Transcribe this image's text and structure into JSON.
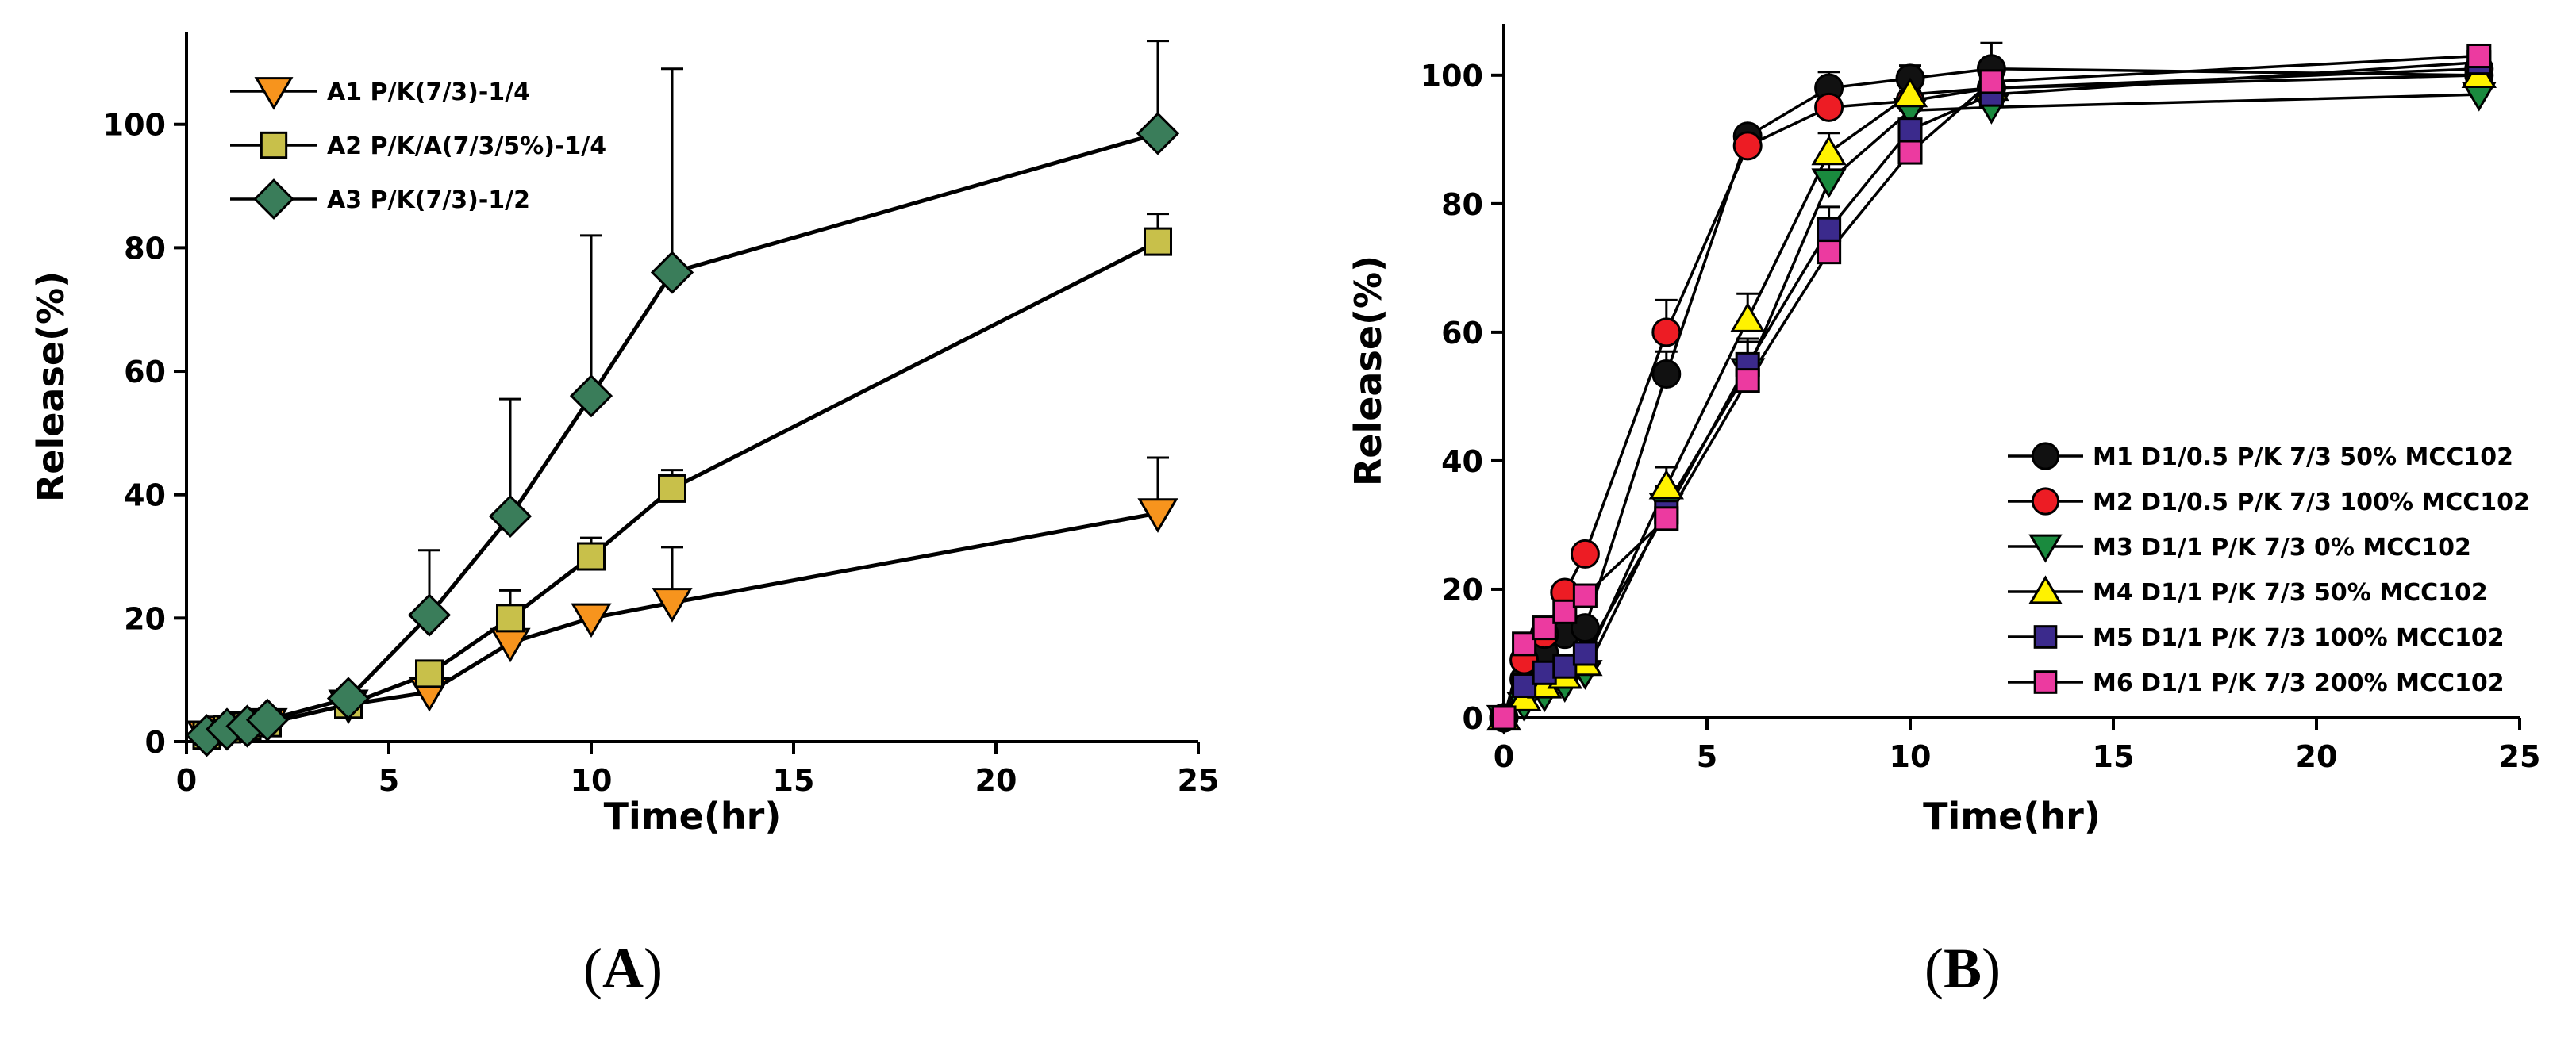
{
  "chart_data": [
    {
      "panel": "A",
      "type": "line",
      "title": "",
      "xlabel": "Time(hr)",
      "ylabel": "Release(%)",
      "xlim": [
        0,
        25
      ],
      "ylim": [
        0,
        115
      ],
      "xticks": [
        0,
        5,
        10,
        15,
        20,
        25
      ],
      "yticks": [
        0,
        20,
        40,
        60,
        80,
        100
      ],
      "grid": false,
      "legend_position": "top-left",
      "series": [
        {
          "name": "A1 P/K(7/3)-1/4",
          "marker": "triangle-down",
          "color": "#f7941d",
          "x": [
            0.5,
            1,
            1.5,
            2,
            4,
            6,
            8,
            10,
            12,
            24
          ],
          "y": [
            1,
            1.8,
            2.5,
            3,
            6,
            8,
            16,
            20,
            22.5,
            37
          ],
          "err": [
            0,
            0,
            0,
            0,
            0,
            0,
            0,
            0,
            9,
            9
          ]
        },
        {
          "name": "A2 P/K/A(7/3/5%)-1/4",
          "marker": "square",
          "color": "#c8c04a",
          "x": [
            0.5,
            1,
            1.5,
            2,
            4,
            6,
            8,
            10,
            12,
            24
          ],
          "y": [
            1,
            2,
            2.5,
            3,
            6,
            11,
            20,
            30,
            41,
            81
          ],
          "err": [
            0,
            0,
            0,
            0,
            0,
            0,
            4.5,
            3,
            3,
            4.5
          ]
        },
        {
          "name": "A3 P/K(7/3)-1/2",
          "marker": "diamond",
          "color": "#3a7d5a",
          "x": [
            0.5,
            1,
            1.5,
            2,
            4,
            6,
            8,
            10,
            12,
            24
          ],
          "y": [
            1,
            2,
            2.5,
            3.5,
            7,
            20.5,
            36.5,
            56,
            76,
            98.5
          ],
          "err": [
            0,
            0,
            0,
            0,
            0,
            10.5,
            19,
            26,
            33,
            15
          ]
        }
      ]
    },
    {
      "panel": "B",
      "type": "line",
      "title": "",
      "xlabel": "Time(hr)",
      "ylabel": "Release(%)",
      "xlim": [
        0,
        25
      ],
      "ylim": [
        0,
        108
      ],
      "xticks": [
        0,
        5,
        10,
        15,
        20,
        25
      ],
      "yticks": [
        0,
        20,
        40,
        60,
        80,
        100
      ],
      "grid": false,
      "legend_position": "bottom-right",
      "series": [
        {
          "name": "M1 D1/0.5 P/K 7/3  50% MCC102",
          "marker": "circle",
          "color": "#111111",
          "x": [
            0,
            0.5,
            1,
            1.5,
            2,
            4,
            6,
            8,
            10,
            12,
            24
          ],
          "y": [
            0,
            6,
            10,
            13,
            14,
            53.5,
            90.5,
            98,
            99.5,
            101,
            100
          ],
          "err": [
            0,
            0,
            0,
            0,
            0,
            3.5,
            0,
            2.5,
            2,
            4,
            0
          ]
        },
        {
          "name": "M2 D1/0.5 P/K 7/3  100% MCC102",
          "marker": "circle",
          "color": "#ed1c24",
          "x": [
            0,
            0.5,
            1,
            1.5,
            2,
            4,
            6,
            8,
            10,
            12,
            24
          ],
          "y": [
            0,
            9,
            13,
            19.5,
            25.5,
            60,
            89,
            95,
            96,
            98,
            101
          ],
          "err": [
            0,
            0,
            0,
            0,
            0,
            5,
            2.5,
            2.5,
            2,
            2,
            0
          ]
        },
        {
          "name": "M3 D1/1 P/K 7/3  0% MCC102",
          "marker": "triangle-down",
          "color": "#1a8a3e",
          "x": [
            0,
            0.5,
            1,
            1.5,
            2,
            4,
            6,
            8,
            10,
            12,
            24
          ],
          "y": [
            0,
            2,
            3.5,
            5,
            7,
            33,
            54,
            83.5,
            94.5,
            95,
            97
          ],
          "err": [
            0,
            0,
            0,
            0,
            0,
            3,
            2.5,
            3,
            3,
            3.5,
            2.5
          ]
        },
        {
          "name": "M4 D1/1 P/K 7/3  50% MCC102",
          "marker": "triangle-up",
          "color": "#fff200",
          "x": [
            0,
            0.5,
            1,
            1.5,
            2,
            4,
            6,
            8,
            10,
            12,
            24
          ],
          "y": [
            0,
            3,
            5,
            6.5,
            8.5,
            36,
            62,
            88,
            97,
            98,
            100
          ],
          "err": [
            0,
            0,
            0,
            0,
            0,
            3,
            4,
            3,
            2.5,
            2,
            2
          ]
        },
        {
          "name": "M5 D1/1 P/K 7/3  100% MCC102",
          "marker": "square",
          "color": "#3b2a8c",
          "x": [
            0,
            0.5,
            1,
            1.5,
            2,
            4,
            6,
            8,
            10,
            12,
            24
          ],
          "y": [
            0,
            5,
            7,
            8,
            10,
            32,
            55,
            76,
            91.5,
            97,
            102
          ],
          "err": [
            0,
            0,
            0,
            0,
            0,
            3,
            4,
            3.5,
            3,
            2.5,
            1.5
          ]
        },
        {
          "name": "M6 D1/1 P/K 7/3  200% MCC102",
          "marker": "square",
          "color": "#ec3aa0",
          "x": [
            0,
            0.5,
            1,
            1.5,
            2,
            4,
            6,
            8,
            10,
            12,
            24
          ],
          "y": [
            0,
            11.5,
            14,
            16.5,
            19,
            31,
            52.5,
            72.5,
            88,
            99,
            103
          ],
          "err": [
            0,
            0,
            0,
            0,
            0,
            3,
            6,
            3.5,
            3,
            2,
            0
          ]
        }
      ]
    }
  ],
  "panels": {
    "A": {
      "label": "A"
    },
    "B": {
      "label": "B"
    }
  }
}
